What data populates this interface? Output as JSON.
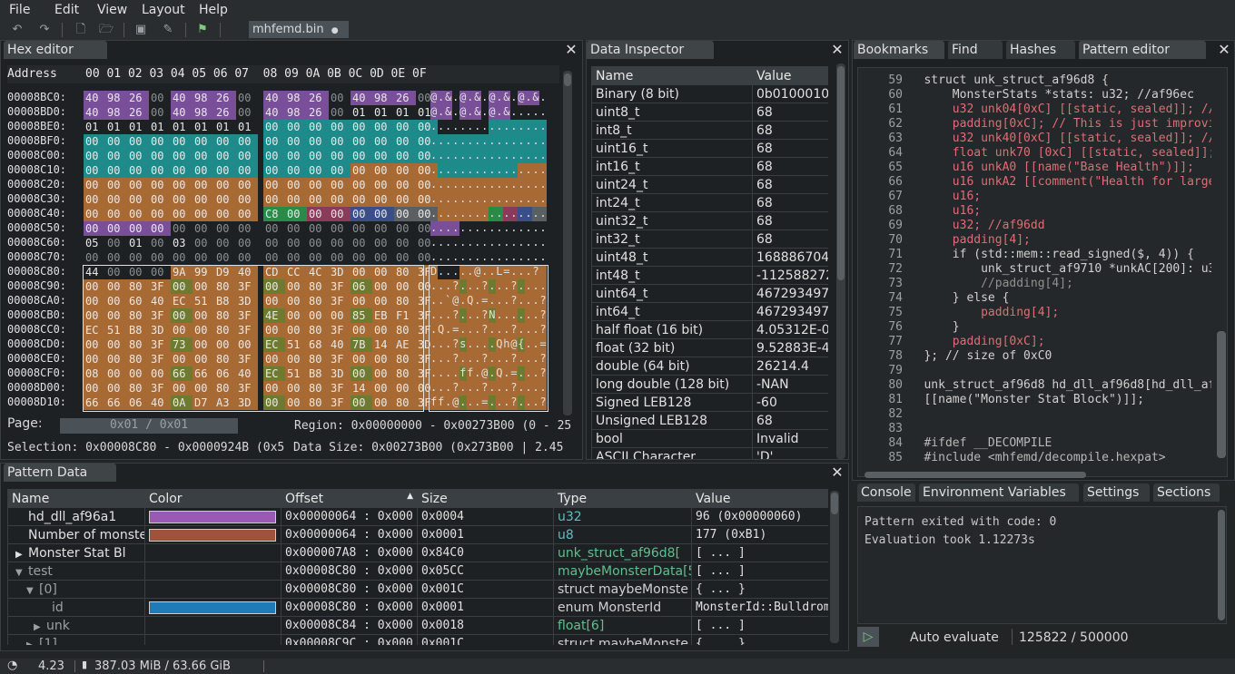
{
  "menu": [
    "File",
    "Edit",
    "View",
    "Layout",
    "Help"
  ],
  "file_tab": {
    "name": "mhfemd.bin",
    "modified_dot": "●"
  },
  "hex_editor": {
    "title": "Hex editor",
    "header_address": "Address",
    "header_bytes": "00 01 02 03 04 05 06 07  08 09 0A 0B 0C 0D 0E 0F",
    "rows": [
      {
        "addr": "00008BC0:",
        "bytes": [
          "40",
          "98",
          "26",
          "00",
          "40",
          "98",
          "26",
          "00",
          "40",
          "98",
          "26",
          "00",
          "40",
          "98",
          "26",
          "00"
        ],
        "ascii": "@.&.@.&.@.&.@.&."
      },
      {
        "addr": "00008BD0:",
        "bytes": [
          "40",
          "98",
          "26",
          "00",
          "40",
          "98",
          "26",
          "00",
          "40",
          "98",
          "26",
          "00",
          "01",
          "01",
          "01",
          "01"
        ],
        "ascii": "@.&.@.&.@.&....."
      },
      {
        "addr": "00008BE0:",
        "bytes": [
          "01",
          "01",
          "01",
          "01",
          "01",
          "01",
          "01",
          "01",
          "00",
          "00",
          "00",
          "00",
          "00",
          "00",
          "00",
          "00"
        ],
        "ascii": "................"
      },
      {
        "addr": "00008BF0:",
        "bytes": [
          "00",
          "00",
          "00",
          "00",
          "00",
          "00",
          "00",
          "00",
          "00",
          "00",
          "00",
          "00",
          "00",
          "00",
          "00",
          "00"
        ],
        "ascii": "................"
      },
      {
        "addr": "00008C00:",
        "bytes": [
          "00",
          "00",
          "00",
          "00",
          "00",
          "00",
          "00",
          "00",
          "00",
          "00",
          "00",
          "00",
          "00",
          "00",
          "00",
          "00"
        ],
        "ascii": "................"
      },
      {
        "addr": "00008C10:",
        "bytes": [
          "00",
          "00",
          "00",
          "00",
          "00",
          "00",
          "00",
          "00",
          "00",
          "00",
          "00",
          "00",
          "00",
          "00",
          "00",
          "00"
        ],
        "ascii": "................"
      },
      {
        "addr": "00008C20:",
        "bytes": [
          "00",
          "00",
          "00",
          "00",
          "00",
          "00",
          "00",
          "00",
          "00",
          "00",
          "00",
          "00",
          "00",
          "00",
          "00",
          "00"
        ],
        "ascii": "................"
      },
      {
        "addr": "00008C30:",
        "bytes": [
          "00",
          "00",
          "00",
          "00",
          "00",
          "00",
          "00",
          "00",
          "00",
          "00",
          "00",
          "00",
          "00",
          "00",
          "00",
          "00"
        ],
        "ascii": "................"
      },
      {
        "addr": "00008C40:",
        "bytes": [
          "00",
          "00",
          "00",
          "00",
          "00",
          "00",
          "00",
          "00",
          "C8",
          "00",
          "00",
          "00",
          "00",
          "00",
          "00",
          "00"
        ],
        "ascii": "................"
      },
      {
        "addr": "00008C50:",
        "bytes": [
          "00",
          "00",
          "00",
          "00",
          "00",
          "00",
          "00",
          "00",
          "00",
          "00",
          "00",
          "00",
          "00",
          "00",
          "00",
          "00"
        ],
        "ascii": "................"
      },
      {
        "addr": "00008C60:",
        "bytes": [
          "05",
          "00",
          "01",
          "00",
          "03",
          "00",
          "00",
          "00",
          "00",
          "00",
          "00",
          "00",
          "00",
          "00",
          "00",
          "00"
        ],
        "ascii": "................"
      },
      {
        "addr": "00008C70:",
        "bytes": [
          "00",
          "00",
          "00",
          "00",
          "00",
          "00",
          "00",
          "00",
          "00",
          "00",
          "00",
          "00",
          "00",
          "00",
          "00",
          "00"
        ],
        "ascii": "................"
      },
      {
        "addr": "00008C80:",
        "bytes": [
          "44",
          "00",
          "00",
          "00",
          "9A",
          "99",
          "D9",
          "40",
          "CD",
          "CC",
          "4C",
          "3D",
          "00",
          "00",
          "80",
          "3F"
        ],
        "ascii": "D.....@..L=...?"
      },
      {
        "addr": "00008C90:",
        "bytes": [
          "00",
          "00",
          "80",
          "3F",
          "00",
          "00",
          "80",
          "3F",
          "00",
          "00",
          "80",
          "3F",
          "06",
          "00",
          "00",
          "00"
        ],
        "ascii": "...?...?...?...."
      },
      {
        "addr": "00008CA0:",
        "bytes": [
          "00",
          "00",
          "60",
          "40",
          "EC",
          "51",
          "B8",
          "3D",
          "00",
          "00",
          "80",
          "3F",
          "00",
          "00",
          "80",
          "3F"
        ],
        "ascii": "..`@.Q.=...?...?"
      },
      {
        "addr": "00008CB0:",
        "bytes": [
          "00",
          "00",
          "80",
          "3F",
          "00",
          "00",
          "80",
          "3F",
          "4E",
          "00",
          "00",
          "00",
          "85",
          "EB",
          "F1",
          "3F"
        ],
        "ascii": "...?...?N......?"
      },
      {
        "addr": "00008CC0:",
        "bytes": [
          "EC",
          "51",
          "B8",
          "3D",
          "00",
          "00",
          "80",
          "3F",
          "00",
          "00",
          "80",
          "3F",
          "00",
          "00",
          "80",
          "3F"
        ],
        "ascii": ".Q.=...?...?...?"
      },
      {
        "addr": "00008CD0:",
        "bytes": [
          "00",
          "00",
          "80",
          "3F",
          "73",
          "00",
          "00",
          "00",
          "EC",
          "51",
          "68",
          "40",
          "7B",
          "14",
          "AE",
          "3D"
        ],
        "ascii": "...?s....Qh@{..="
      },
      {
        "addr": "00008CE0:",
        "bytes": [
          "00",
          "00",
          "80",
          "3F",
          "00",
          "00",
          "80",
          "3F",
          "00",
          "00",
          "80",
          "3F",
          "00",
          "00",
          "80",
          "3F"
        ],
        "ascii": "...?...?...?...?"
      },
      {
        "addr": "00008CF0:",
        "bytes": [
          "08",
          "00",
          "00",
          "00",
          "66",
          "66",
          "06",
          "40",
          "EC",
          "51",
          "B8",
          "3D",
          "00",
          "00",
          "80",
          "3F"
        ],
        "ascii": "....ff.@.Q.=...?"
      },
      {
        "addr": "00008D00:",
        "bytes": [
          "00",
          "00",
          "80",
          "3F",
          "00",
          "00",
          "80",
          "3F",
          "00",
          "00",
          "80",
          "3F",
          "14",
          "00",
          "00",
          "00"
        ],
        "ascii": "...?...?...?...."
      },
      {
        "addr": "00008D10:",
        "bytes": [
          "66",
          "66",
          "06",
          "40",
          "0A",
          "D7",
          "A3",
          "3D",
          "00",
          "00",
          "80",
          "3F",
          "00",
          "00",
          "80",
          "3F"
        ],
        "ascii": "ff.@...=...?...?"
      }
    ],
    "page_label": "Page:",
    "page_value": "0x01 / 0x01",
    "region": "Region: 0x00000000 - 0x00273B00 (0 - 25",
    "selection": "Selection: 0x00008C80 - 0x0000924B (0x5",
    "data_size": "Data Size: 0x00273B00 (0x273B00 | 2.45"
  },
  "data_inspector": {
    "title": "Data Inspector",
    "headers": [
      "Name",
      "Value"
    ],
    "rows": [
      [
        "Binary (8 bit)",
        "0b01000100"
      ],
      [
        "uint8_t",
        "68"
      ],
      [
        "int8_t",
        "68"
      ],
      [
        "uint16_t",
        "68"
      ],
      [
        "int16_t",
        "68"
      ],
      [
        "uint24_t",
        "68"
      ],
      [
        "int24_t",
        "68"
      ],
      [
        "uint32_t",
        "68"
      ],
      [
        "int32_t",
        "68"
      ],
      [
        "uint48_t",
        "1688867040"
      ],
      [
        "int48_t",
        "-112588272"
      ],
      [
        "uint64_t",
        "4672934975"
      ],
      [
        "int64_t",
        "4672934975"
      ],
      [
        "half float (16 bit)",
        "4.05312E-0"
      ],
      [
        "float (32 bit)",
        "9.52883E-4"
      ],
      [
        "double (64 bit)",
        "26214.4"
      ],
      [
        "long double (128 bit)",
        "-NAN"
      ],
      [
        "Signed LEB128",
        "-60"
      ],
      [
        "Unsigned LEB128",
        "68"
      ],
      [
        "bool",
        "Invalid"
      ],
      [
        "ASCII Character",
        "'D'"
      ]
    ]
  },
  "right_tabs": [
    "Bookmarks",
    "Find",
    "Hashes",
    "Pattern editor"
  ],
  "pattern_editor": {
    "lines": [
      {
        "n": "59",
        "t": "struct unk_struct_af96d8 {"
      },
      {
        "n": "60",
        "t": "    MonsterStats *stats: u32; //af96ec"
      },
      {
        "n": "61",
        "t": "    u32 unk04[0xC] [[static, sealed]]; //af"
      },
      {
        "n": "62",
        "t": "    padding[0xC]; // This is just improviz"
      },
      {
        "n": "63",
        "t": "    u32 unk40[0xC] [[static, sealed]]; // I"
      },
      {
        "n": "64",
        "t": "    float unk70 [0xC] [[static, sealed]]; /"
      },
      {
        "n": "65",
        "t": "    u16 unkA0 [[name(\"Base Health\")]];"
      },
      {
        "n": "66",
        "t": "    u16 unkA2 [[comment(\"Health for large?"
      },
      {
        "n": "67",
        "t": "    u16;"
      },
      {
        "n": "68",
        "t": "    u16;"
      },
      {
        "n": "69",
        "t": "    u32; //af96dd"
      },
      {
        "n": "70",
        "t": "    padding[4];"
      },
      {
        "n": "71",
        "t": "    if (std::mem::read_signed($, 4)) {"
      },
      {
        "n": "72",
        "t": "        unk_struct_af9710 *unkAC[200]: u32;"
      },
      {
        "n": "73",
        "t": "        //padding[4];"
      },
      {
        "n": "74",
        "t": "    } else {"
      },
      {
        "n": "75",
        "t": "        padding[4];"
      },
      {
        "n": "76",
        "t": "    }"
      },
      {
        "n": "77",
        "t": "    padding[0xC];"
      },
      {
        "n": "78",
        "t": "}; // size of 0xC0"
      },
      {
        "n": "79",
        "t": ""
      },
      {
        "n": "80",
        "t": "unk_struct_af96d8 hd_dll_af96d8[hd_dll_af96"
      },
      {
        "n": "81",
        "t": "[[name(\"Monster Stat Block\")]];"
      },
      {
        "n": "82",
        "t": ""
      },
      {
        "n": "83",
        "t": ""
      },
      {
        "n": "84",
        "t": "#ifdef __DECOMPILE"
      },
      {
        "n": "85",
        "t": "#include <mhfemd/decompile.hexpat>"
      }
    ]
  },
  "console_tabs": [
    "Console",
    "Environment Variables",
    "Settings",
    "Sections"
  ],
  "console": {
    "lines": [
      "Pattern exited with code: 0",
      "Evaluation took 1.12273s"
    ],
    "auto_evaluate": "Auto evaluate",
    "counter": "125822 / 500000"
  },
  "pattern_data": {
    "title": "Pattern Data",
    "headers": [
      "Name",
      "Color",
      "Offset",
      "Size",
      "Type",
      "Value"
    ],
    "sort_indicator": "▲",
    "rows": [
      {
        "name": "hd_dll_af96a1",
        "color": "#9b59b6",
        "offset": "0x00000064 : 0x000",
        "size": "0x0004",
        "type": "u32",
        "value": "96 (0x00000060)",
        "expander": ""
      },
      {
        "name": "Number of monster",
        "color": "#a0523d",
        "offset": "0x00000064 : 0x000",
        "size": "0x0001",
        "type": "u8",
        "value": "177 (0xB1)",
        "expander": ""
      },
      {
        "name": "Monster Stat Bl",
        "color": "",
        "offset": "0x000007A8 : 0x000",
        "size": "0x84C0",
        "type": "unk_struct_af96d8[",
        "value": "[ ... ]",
        "expander": "▶"
      },
      {
        "name": "test",
        "color": "",
        "offset": "0x00008C80 : 0x000",
        "size": "0x05CC",
        "type": "maybeMonsterData[5",
        "value": "[ ... ]",
        "expander": "▼"
      },
      {
        "name": "[0]",
        "color": "",
        "offset": "0x00008C80 : 0x000",
        "size": "0x001C",
        "type": "struct maybeMonste",
        "value": "{ ... }",
        "expander": "▼"
      },
      {
        "name": "id",
        "color": "#1f7ab8",
        "offset": "0x00008C80 : 0x000",
        "size": "0x0001",
        "type": "enum MonsterId",
        "value": "MonsterId::Bulldrom",
        "expander": ""
      },
      {
        "name": "unk",
        "color": "",
        "offset": "0x00008C84 : 0x000",
        "size": "0x0018",
        "type": "float[6]",
        "value": "[ ... ]",
        "expander": "▶"
      },
      {
        "name": "[1]",
        "color": "",
        "offset": "0x00008C9C : 0x000",
        "size": "0x001C",
        "type": "struct maybeMonste",
        "value": "{ ... }",
        "expander": "▶"
      }
    ]
  },
  "status": {
    "fps": "4.23",
    "memory": "387.03 MiB / 63.66 GiB"
  }
}
